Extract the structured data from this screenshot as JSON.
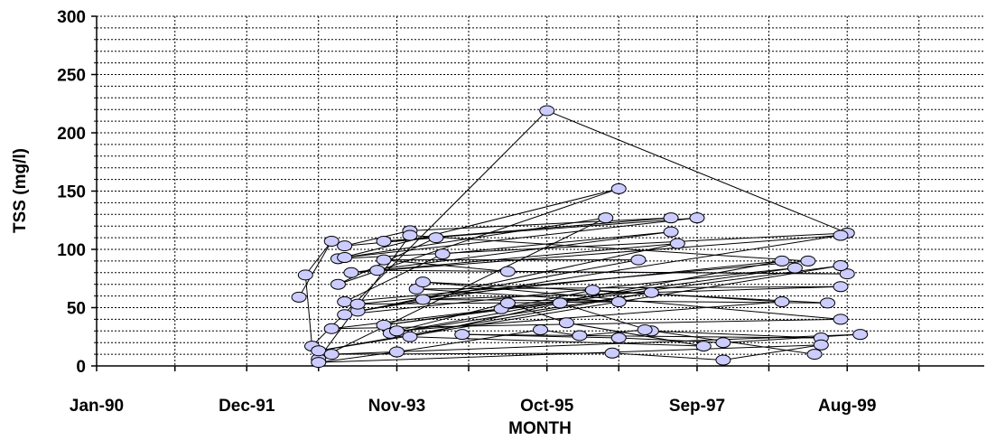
{
  "chart_data": {
    "type": "scatter",
    "xlabel": "MONTH",
    "ylabel": "TSS  (mg/l)",
    "ylim": [
      0,
      300
    ],
    "y_ticks": [
      0,
      50,
      100,
      150,
      200,
      250,
      300
    ],
    "x_range_months": [
      "1990-01",
      "2001-05"
    ],
    "x_ticks": [
      {
        "date": "1990-01",
        "label": "Jan-90"
      },
      {
        "date": "1991-12",
        "label": "Dec-91"
      },
      {
        "date": "1993-11",
        "label": "Nov-93"
      },
      {
        "date": "1995-10",
        "label": "Oct-95"
      },
      {
        "date": "1997-09",
        "label": "Sep-97"
      },
      {
        "date": "1999-08",
        "label": "Aug-99"
      }
    ],
    "x_gridlines": [
      "1990-01",
      "1991-01",
      "1991-12",
      "1992-11",
      "1993-11",
      "1994-10",
      "1995-10",
      "1996-09",
      "1997-09",
      "1998-08",
      "1999-08",
      "2000-07"
    ],
    "grid": true,
    "marker_color": "#ccccff",
    "marker_edge": "#000000",
    "line_color": "#000000",
    "series": [
      {
        "points": [
          [
            "1992-08",
            59
          ],
          [
            "1993-01",
            107
          ],
          [
            "1992-09",
            78
          ],
          [
            "1992-10",
            17
          ],
          [
            "1995-10",
            219
          ],
          [
            "1999-08",
            114
          ],
          [
            "1993-02",
            92
          ],
          [
            "1996-09",
            152
          ],
          [
            "1993-02",
            70
          ],
          [
            "1994-05",
            110
          ],
          [
            "1993-03",
            103
          ],
          [
            "1994-01",
            116
          ],
          [
            "1997-05",
            127
          ],
          [
            "1993-09",
            107
          ],
          [
            "1997-09",
            127
          ],
          [
            "1993-03",
            93
          ],
          [
            "1996-07",
            127
          ],
          [
            "1992-11",
            6
          ],
          [
            "1994-01",
            112
          ],
          [
            "1999-02",
            90
          ],
          [
            "1993-03",
            55
          ],
          [
            "1994-06",
            96
          ],
          [
            "1997-05",
            115
          ],
          [
            "1993-04",
            80
          ],
          [
            "1999-07",
            112
          ],
          [
            "1993-05",
            47
          ],
          [
            "1996-12",
            91
          ],
          [
            "1993-09",
            91
          ],
          [
            "1995-04",
            81
          ],
          [
            "1999-08",
            79
          ],
          [
            "1993-08",
            82
          ],
          [
            "1997-06",
            105
          ],
          [
            "1993-03",
            44
          ],
          [
            "1998-12",
            84
          ],
          [
            "1993-09",
            35
          ],
          [
            "1999-07",
            86
          ],
          [
            "1992-11",
            13
          ],
          [
            "1997-02",
            63
          ],
          [
            "1993-10",
            28
          ],
          [
            "1998-10",
            90
          ],
          [
            "1993-05",
            53
          ],
          [
            "1996-09",
            55
          ],
          [
            "1994-02",
            66
          ],
          [
            "1999-07",
            68
          ],
          [
            "1994-03",
            57
          ],
          [
            "1999-05",
            54
          ],
          [
            "1994-03",
            72
          ],
          [
            "1999-07",
            40
          ],
          [
            "1993-01",
            32
          ],
          [
            "1995-03",
            49
          ],
          [
            "1996-05",
            65
          ],
          [
            "1998-10",
            55
          ],
          [
            "1993-11",
            30
          ],
          [
            "1995-04",
            54
          ],
          [
            "1996-01",
            37
          ],
          [
            "1997-10",
            17
          ],
          [
            "1994-01",
            25
          ],
          [
            "1995-12",
            54
          ],
          [
            "1997-02",
            30
          ],
          [
            "1999-04",
            24
          ],
          [
            "1994-09",
            27
          ],
          [
            "1996-09",
            24
          ],
          [
            "1998-01",
            20
          ],
          [
            "1999-10",
            27
          ],
          [
            "1993-01",
            10
          ],
          [
            "1996-08",
            11
          ],
          [
            "1998-01",
            5
          ],
          [
            "1999-04",
            18
          ],
          [
            "1992-11",
            3
          ],
          [
            "1993-11",
            12
          ],
          [
            "1995-09",
            31
          ],
          [
            "1996-03",
            26
          ],
          [
            "1997-01",
            31
          ],
          [
            "1999-03",
            10
          ]
        ]
      }
    ]
  }
}
